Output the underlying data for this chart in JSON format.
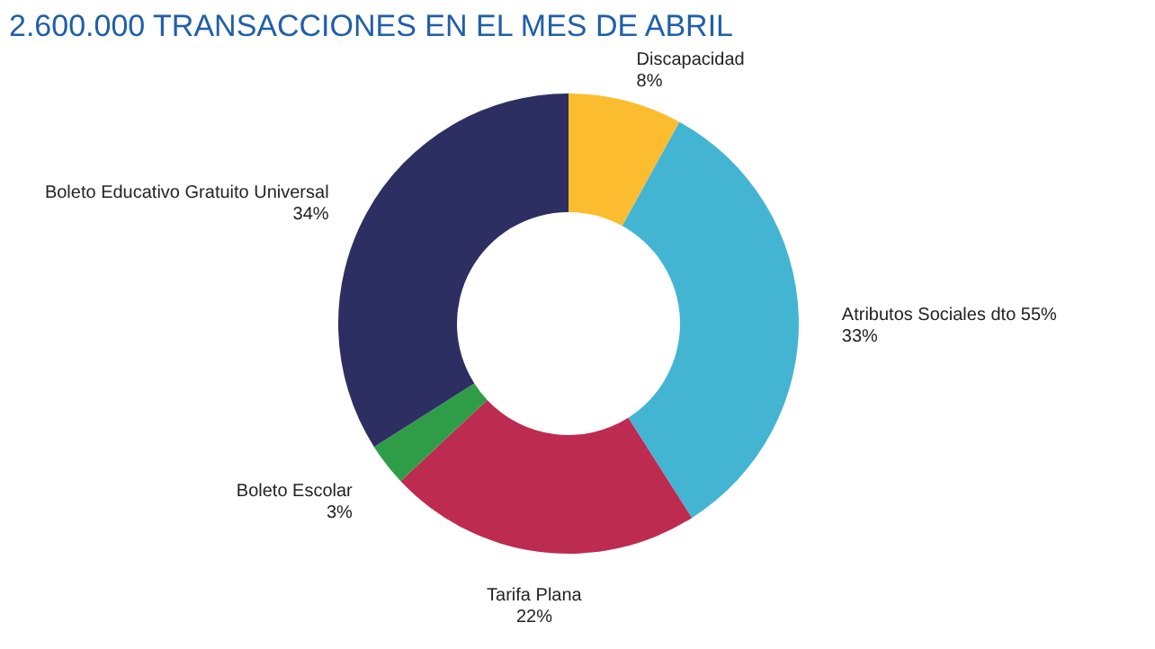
{
  "chart_data": {
    "type": "donut",
    "title": "2.600.000 TRANSACCIONES EN EL MES DE ABRIL",
    "categories": [
      "Discapacidad",
      "Atributos Sociales dto 55%",
      "Tarifa Plana",
      "Boleto Escolar",
      "Boleto Educativo Gratuito Universal"
    ],
    "values": [
      8,
      33,
      22,
      3,
      34
    ],
    "value_labels": [
      "8%",
      "33%",
      "22%",
      "3%",
      "34%"
    ],
    "colors": [
      "#fbbd2f",
      "#43b5d3",
      "#be2b50",
      "#2f9d48",
      "#2d2f62"
    ],
    "legend": false
  }
}
